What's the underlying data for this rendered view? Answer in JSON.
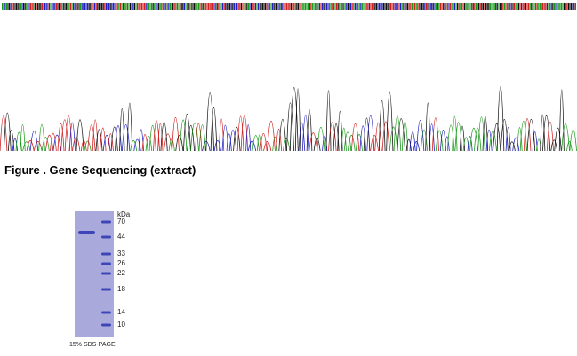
{
  "sequencing": {
    "caption": "Figure . Gene Sequencing (extract)"
  },
  "gel": {
    "unit": "kDa",
    "markers": [
      "70",
      "44",
      "33",
      "26",
      "22",
      "18",
      "14",
      "10"
    ],
    "caption": "15% SDS-PAGE"
  }
}
